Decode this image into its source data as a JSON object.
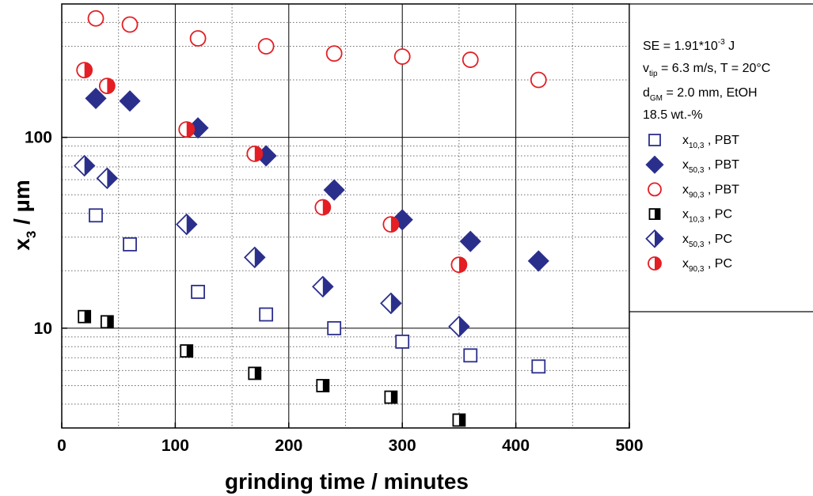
{
  "chart_data": {
    "type": "scatter",
    "title": "",
    "xlabel": "grinding time / minutes",
    "ylabel": {
      "main": "x",
      "sub": "3",
      "rest": " / µm"
    },
    "xlim": [
      0,
      500
    ],
    "ylim": [
      3,
      500
    ],
    "yscale": "log",
    "grid": true,
    "x_ticks": [
      0,
      100,
      200,
      300,
      400,
      500
    ],
    "x_tick_labels": [
      "0",
      "100",
      "200",
      "300",
      "400",
      "500"
    ],
    "y_ticks": [
      10,
      100
    ],
    "y_tick_labels": [
      "10",
      "100"
    ],
    "legend_position": "right",
    "annotations": [
      {
        "text": "SE = 1.91*10",
        "sup": "-3",
        "rest": " J"
      },
      {
        "text": "v",
        "sub": "tip",
        "rest": " =  6.3 m/s, T = 20°C"
      },
      {
        "text": "d",
        "sub": "GM",
        "rest": " = 2.0 mm, EtOH"
      },
      {
        "text": "18.5 wt.-%"
      }
    ],
    "series": [
      {
        "name": "x10,3 , PBT",
        "label_main": "x",
        "label_sub": "10,3",
        "label_rest": " , PBT",
        "marker": "square-open",
        "color": "#2b2f8c",
        "x": [
          30,
          60,
          120,
          180,
          240,
          300,
          360,
          420
        ],
        "y": [
          39,
          27.5,
          15.5,
          11.8,
          10,
          8.5,
          7.2,
          6.3
        ]
      },
      {
        "name": "x50,3 , PBT",
        "label_main": "x",
        "label_sub": "50,3",
        "label_rest": " , PBT",
        "marker": "diamond-filled",
        "color": "#2b2f8c",
        "x": [
          30,
          60,
          120,
          180,
          240,
          300,
          360,
          420
        ],
        "y": [
          160,
          155,
          112,
          80,
          53,
          37,
          28.5,
          22.5
        ]
      },
      {
        "name": "x90,3 , PBT",
        "label_main": "x",
        "label_sub": "90,3",
        "label_rest": " , PBT",
        "marker": "circle-open",
        "color": "#e31e24",
        "x": [
          30,
          60,
          120,
          180,
          240,
          300,
          360,
          420
        ],
        "y": [
          420,
          390,
          330,
          300,
          275,
          265,
          255,
          200
        ]
      },
      {
        "name": "x10,3 , PC",
        "label_main": "x",
        "label_sub": "10,3",
        "label_rest": " , PC",
        "marker": "square-half",
        "color": "#000000",
        "x": [
          20,
          40,
          110,
          170,
          230,
          290,
          350
        ],
        "y": [
          11.5,
          10.8,
          7.6,
          5.8,
          5.0,
          4.35,
          3.3
        ]
      },
      {
        "name": "x50,3 , PC",
        "label_main": "x",
        "label_sub": "50,3",
        "label_rest": " , PC",
        "marker": "diamond-half",
        "color": "#2b2f8c",
        "x": [
          20,
          40,
          110,
          170,
          230,
          290,
          350
        ],
        "y": [
          71,
          61,
          35,
          23.5,
          16.5,
          13.5,
          10.2
        ]
      },
      {
        "name": "x90,3 , PC",
        "label_main": "x",
        "label_sub": "90,3",
        "label_rest": " , PC",
        "marker": "circle-half",
        "color": "#e31e24",
        "x": [
          20,
          40,
          110,
          170,
          230,
          290,
          350
        ],
        "y": [
          225,
          186,
          110,
          82,
          43,
          35,
          21.5
        ]
      }
    ]
  }
}
